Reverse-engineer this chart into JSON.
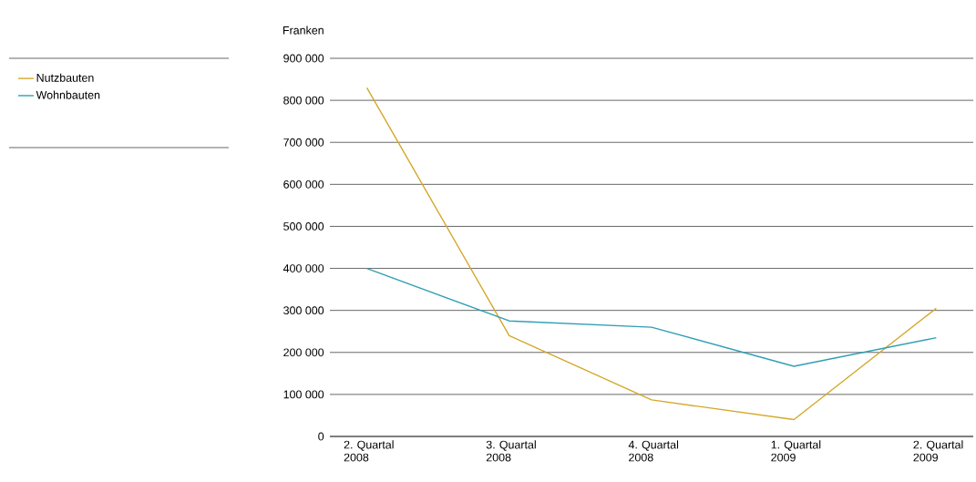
{
  "chart_data": {
    "type": "line",
    "ylabel": "Franken",
    "categories": [
      "2. Quartal 2008",
      "3. Quartal 2008",
      "4. Quartal 2008",
      "1. Quartal 2009",
      "2. Quartal 2009"
    ],
    "series": [
      {
        "name": "Nutzbauten",
        "color": "#d4a82a",
        "values": [
          830000,
          240000,
          87000,
          40000,
          305000
        ]
      },
      {
        "name": "Wohnbauten",
        "color": "#2f9fb5",
        "values": [
          400000,
          275000,
          260000,
          167000,
          235000
        ]
      }
    ],
    "ylim": [
      0,
      900000
    ],
    "yticks": [
      0,
      {
        "value": 100000,
        "label": "100 000"
      },
      {
        "value": 200000,
        "label": "200 000"
      },
      {
        "value": 300000,
        "label": "300 000"
      },
      {
        "value": 400000,
        "label": "400 000"
      },
      {
        "value": 500000,
        "label": "500 000"
      },
      {
        "value": 600000,
        "label": "600 000"
      },
      {
        "value": 700000,
        "label": "700 000"
      },
      {
        "value": 800000,
        "label": "800 000"
      },
      {
        "value": 900000,
        "label": "900 000"
      }
    ],
    "grid": "y",
    "legend": "top left",
    "marker": "none",
    "line_style": "solid"
  }
}
